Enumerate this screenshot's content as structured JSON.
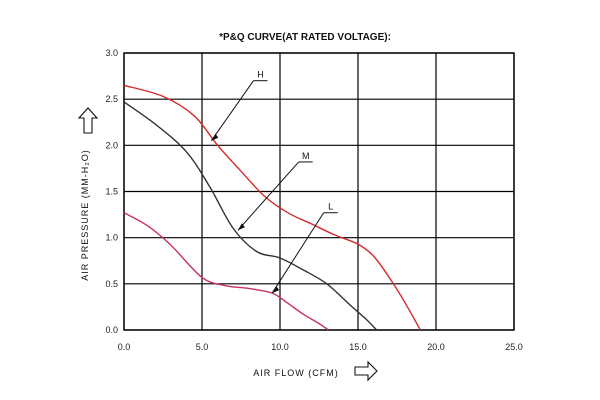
{
  "chart_data": {
    "type": "line",
    "title": "*P&Q CURVE(AT RATED VOLTAGE):",
    "xlabel": "AIR  FLOW  (CFM)",
    "ylabel": "AIR  PRESSURE  (MM-H₂O)",
    "xlim": [
      0,
      25
    ],
    "ylim": [
      0,
      3
    ],
    "x_ticks": [
      "0.0",
      "5.0",
      "10.0",
      "15.0",
      "20.0",
      "25.0"
    ],
    "y_ticks": [
      "0.0",
      "0.5",
      "1.0",
      "1.5",
      "2.0",
      "2.5",
      "3.0"
    ],
    "grid": true,
    "series": [
      {
        "name": "H",
        "color": "#d42a2a",
        "x": [
          0,
          2.5,
          4.5,
          6,
          7.5,
          9,
          10.5,
          12,
          13.5,
          15,
          16,
          17,
          18,
          19
        ],
        "y": [
          2.65,
          2.53,
          2.32,
          2.0,
          1.72,
          1.45,
          1.27,
          1.15,
          1.03,
          0.93,
          0.8,
          0.57,
          0.3,
          0.0
        ]
      },
      {
        "name": "M",
        "color": "#333333",
        "x": [
          0,
          2,
          4,
          5.5,
          7,
          8.5,
          10,
          11.5,
          13,
          14.5,
          15.5,
          16.2
        ],
        "y": [
          2.47,
          2.23,
          1.93,
          1.55,
          1.1,
          0.85,
          0.78,
          0.65,
          0.5,
          0.27,
          0.12,
          0.0
        ]
      },
      {
        "name": "L",
        "color": "#c8306a",
        "x": [
          0,
          1.5,
          3,
          5,
          6.5,
          8,
          9.5,
          10.5,
          11.5,
          12.5,
          13.1
        ],
        "y": [
          1.27,
          1.13,
          0.92,
          0.57,
          0.48,
          0.45,
          0.4,
          0.29,
          0.17,
          0.07,
          0.0
        ]
      }
    ],
    "annotations": [
      {
        "text": "H",
        "series": "H",
        "point_x": 5.6,
        "point_y": 2.05,
        "label_x": 8.3,
        "label_y": 2.7
      },
      {
        "text": "M",
        "series": "M",
        "point_x": 7.3,
        "point_y": 1.08,
        "label_x": 11.2,
        "label_y": 1.82
      },
      {
        "text": "L",
        "series": "L",
        "point_x": 9.5,
        "point_y": 0.4,
        "label_x": 12.8,
        "label_y": 1.27
      }
    ],
    "arrows": {
      "y_axis_arrow": "up-arrow-icon",
      "x_axis_arrow": "right-arrow-icon"
    }
  }
}
